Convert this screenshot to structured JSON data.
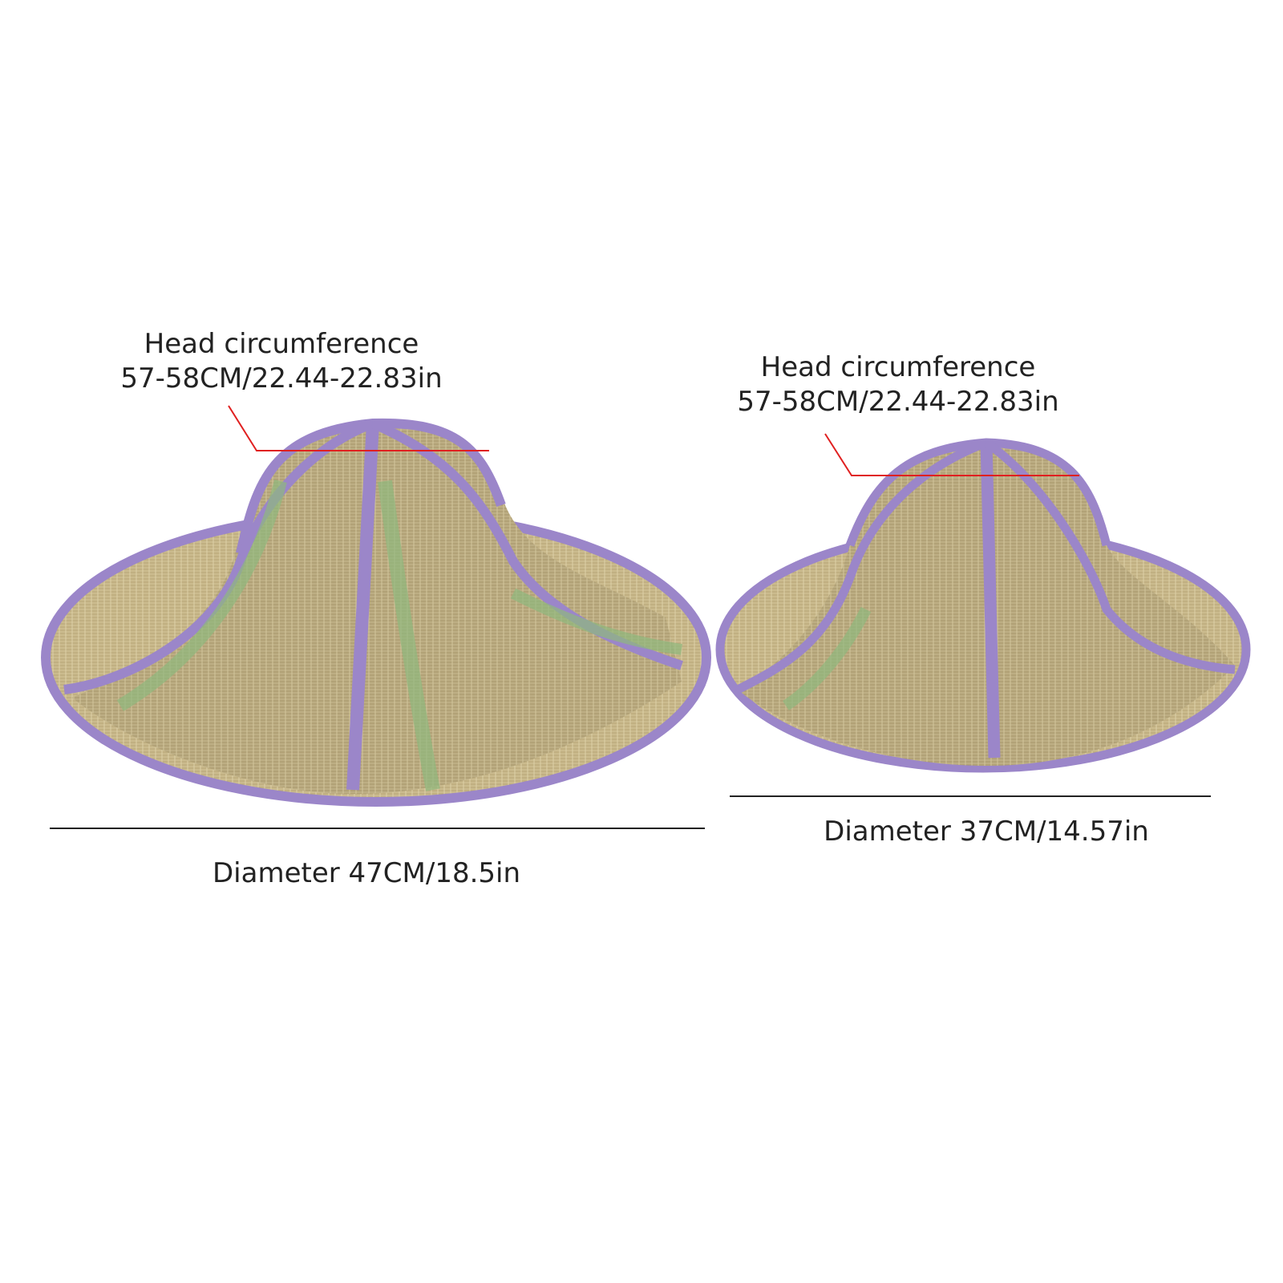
{
  "left_hat": {
    "head_label": "Head circumference",
    "head_value": "57-58CM/22.44-22.83in",
    "diameter_label": "Diameter 47CM/18.5in"
  },
  "right_hat": {
    "head_label": "Head circumference",
    "head_value": "57-58CM/22.44-22.83in",
    "diameter_label": "Diameter 37CM/14.57in"
  },
  "colors": {
    "straw": "#c9b98c",
    "trim": "#9b86c9",
    "pointer": "#e02020",
    "measure_line": "#222222"
  }
}
